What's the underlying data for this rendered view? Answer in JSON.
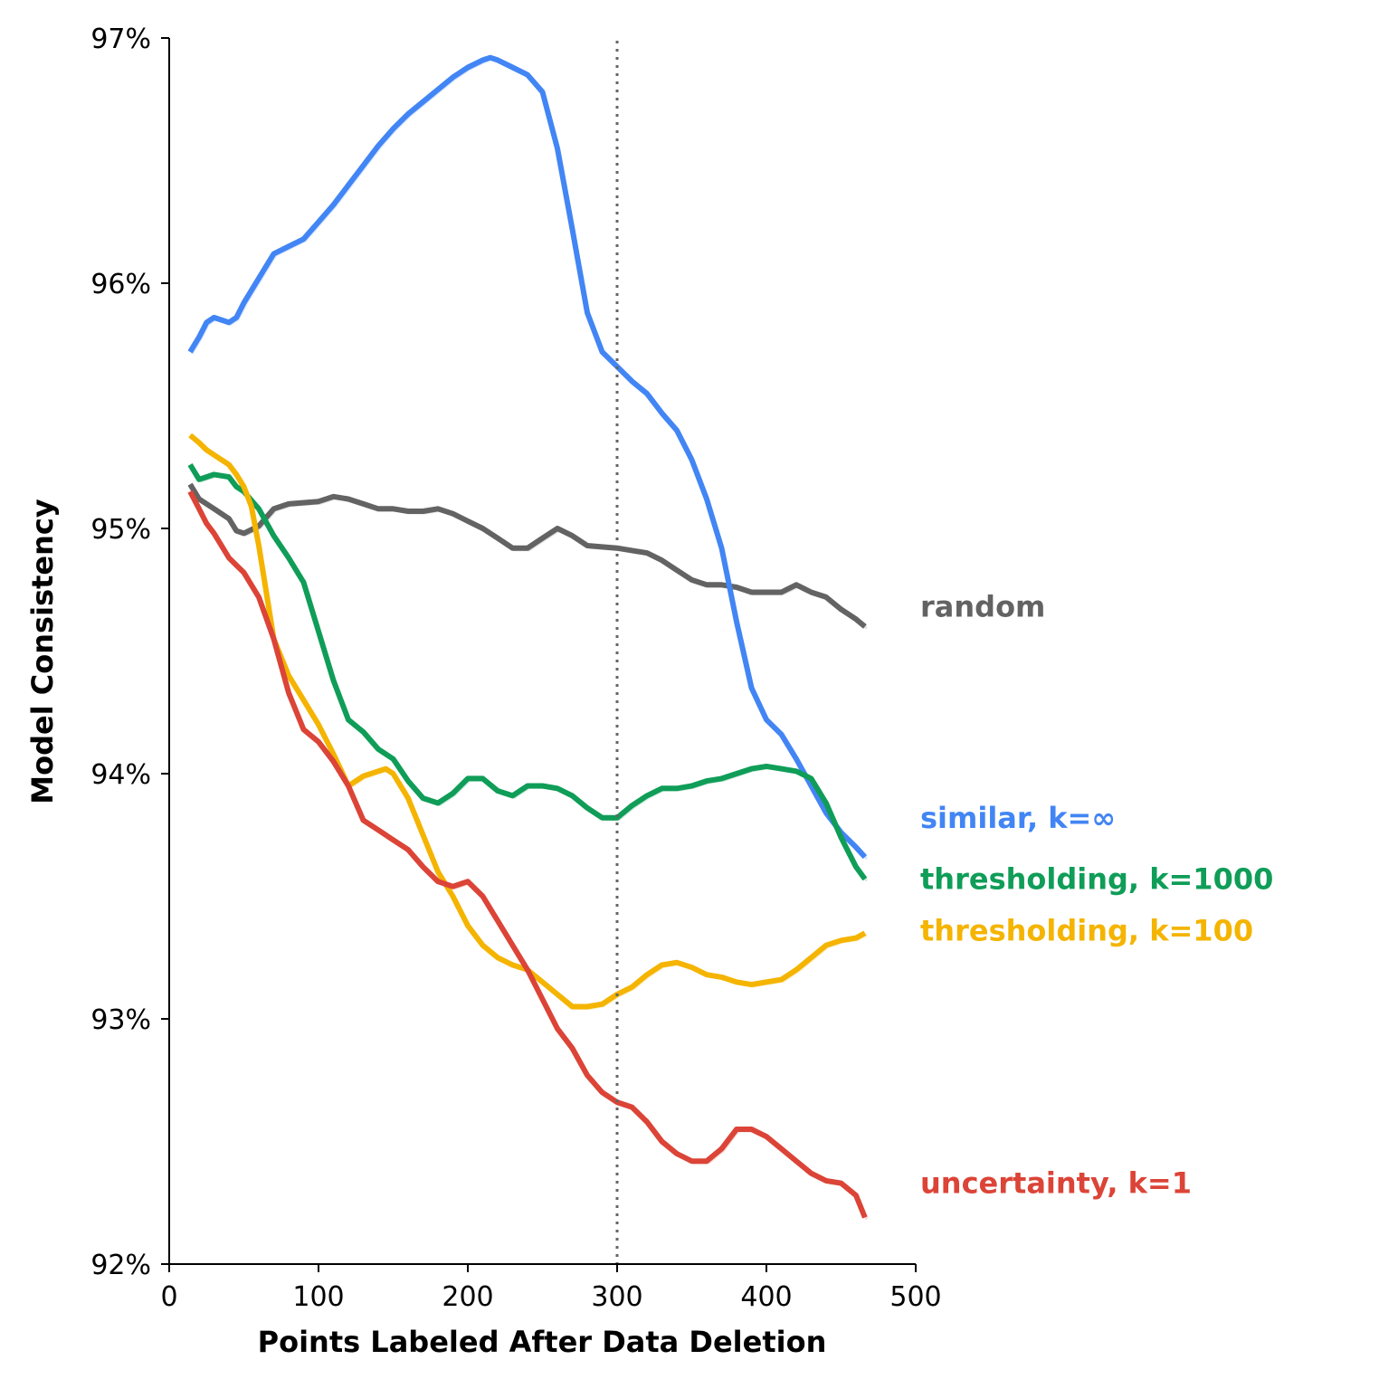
{
  "chart_data": {
    "type": "line",
    "title": "",
    "xlabel": "Points Labeled After Data Deletion",
    "ylabel": "Model Consistency",
    "xlim": [
      0,
      500
    ],
    "ylim": [
      92,
      97
    ],
    "x_ticks": [
      0,
      100,
      200,
      300,
      400,
      500
    ],
    "x_tick_labels": [
      "0",
      "100",
      "200",
      "300",
      "400",
      "500"
    ],
    "y_ticks": [
      92,
      93,
      94,
      95,
      96,
      97
    ],
    "y_tick_labels": [
      "92%",
      "93%",
      "94%",
      "95%",
      "96%",
      "97%"
    ],
    "grid": false,
    "legend": "series labels placed at the right end of each line",
    "reference_line": {
      "x": 300,
      "style": "dotted",
      "color": "#666666"
    },
    "series": [
      {
        "name": "random",
        "color": "#636363",
        "x": [
          14,
          20,
          30,
          40,
          45,
          50,
          60,
          70,
          80,
          100,
          110,
          120,
          130,
          140,
          150,
          160,
          170,
          180,
          190,
          200,
          210,
          220,
          230,
          240,
          250,
          260,
          270,
          280,
          300,
          310,
          320,
          330,
          340,
          350,
          360,
          370,
          380,
          390,
          400,
          410,
          420,
          430,
          440,
          450,
          460,
          466
        ],
        "y": [
          95.18,
          95.12,
          95.08,
          95.04,
          94.99,
          94.98,
          95.01,
          95.08,
          95.1,
          95.11,
          95.13,
          95.12,
          95.1,
          95.08,
          95.08,
          95.07,
          95.07,
          95.08,
          95.06,
          95.03,
          95.0,
          94.96,
          94.92,
          94.92,
          94.96,
          95.0,
          94.97,
          94.93,
          94.92,
          94.91,
          94.9,
          94.87,
          94.83,
          94.79,
          94.77,
          94.77,
          94.76,
          94.74,
          94.74,
          94.74,
          94.77,
          94.74,
          94.72,
          94.67,
          94.63,
          94.6
        ]
      },
      {
        "name": "similar, k=∞",
        "color": "#4285F4",
        "x": [
          14,
          20,
          25,
          30,
          40,
          45,
          50,
          60,
          70,
          80,
          90,
          100,
          110,
          120,
          130,
          140,
          150,
          160,
          170,
          180,
          190,
          200,
          210,
          215,
          220,
          230,
          240,
          250,
          260,
          270,
          280,
          290,
          300,
          310,
          320,
          330,
          340,
          350,
          360,
          370,
          380,
          390,
          400,
          410,
          420,
          430,
          440,
          450,
          460,
          466
        ],
        "y": [
          95.72,
          95.78,
          95.84,
          95.86,
          95.84,
          95.86,
          95.92,
          96.02,
          96.12,
          96.15,
          96.18,
          96.25,
          96.32,
          96.4,
          96.48,
          96.56,
          96.63,
          96.69,
          96.74,
          96.79,
          96.84,
          96.88,
          96.91,
          96.92,
          96.91,
          96.88,
          96.85,
          96.78,
          96.55,
          96.22,
          95.88,
          95.72,
          95.66,
          95.6,
          95.55,
          95.47,
          95.4,
          95.28,
          95.12,
          94.92,
          94.62,
          94.35,
          94.22,
          94.16,
          94.06,
          93.95,
          93.84,
          93.76,
          93.7,
          93.66
        ]
      },
      {
        "name": "thresholding, k=1000",
        "color": "#0F9D58",
        "x": [
          14,
          20,
          25,
          30,
          40,
          45,
          50,
          60,
          70,
          80,
          90,
          100,
          110,
          120,
          130,
          140,
          150,
          160,
          170,
          180,
          190,
          200,
          210,
          220,
          230,
          240,
          250,
          260,
          270,
          280,
          290,
          300,
          310,
          320,
          330,
          340,
          350,
          360,
          370,
          380,
          390,
          400,
          410,
          420,
          430,
          440,
          450,
          460,
          466
        ],
        "y": [
          95.26,
          95.2,
          95.21,
          95.22,
          95.21,
          95.17,
          95.15,
          95.08,
          94.97,
          94.88,
          94.78,
          94.58,
          94.38,
          94.22,
          94.17,
          94.1,
          94.06,
          93.97,
          93.9,
          93.88,
          93.92,
          93.98,
          93.98,
          93.93,
          93.91,
          93.95,
          93.95,
          93.94,
          93.91,
          93.86,
          93.82,
          93.82,
          93.87,
          93.91,
          93.94,
          93.94,
          93.95,
          93.97,
          93.98,
          94.0,
          94.02,
          94.03,
          94.02,
          94.01,
          93.98,
          93.88,
          93.74,
          93.62,
          93.57
        ]
      },
      {
        "name": "thresholding, k=100",
        "color": "#F4B400",
        "x": [
          14,
          20,
          25,
          30,
          40,
          45,
          50,
          55,
          60,
          65,
          70,
          80,
          90,
          100,
          110,
          120,
          130,
          140,
          145,
          150,
          160,
          170,
          180,
          190,
          200,
          210,
          220,
          230,
          240,
          250,
          260,
          270,
          280,
          290,
          300,
          310,
          320,
          330,
          340,
          350,
          360,
          370,
          380,
          390,
          400,
          410,
          420,
          430,
          440,
          450,
          460,
          466
        ],
        "y": [
          95.38,
          95.35,
          95.32,
          95.3,
          95.26,
          95.22,
          95.17,
          95.09,
          94.93,
          94.74,
          94.55,
          94.4,
          94.3,
          94.2,
          94.08,
          93.95,
          93.99,
          94.01,
          94.02,
          94.0,
          93.9,
          93.75,
          93.6,
          93.5,
          93.38,
          93.3,
          93.25,
          93.22,
          93.2,
          93.15,
          93.1,
          93.05,
          93.05,
          93.06,
          93.1,
          93.13,
          93.18,
          93.22,
          93.23,
          93.21,
          93.18,
          93.17,
          93.15,
          93.14,
          93.15,
          93.16,
          93.2,
          93.25,
          93.3,
          93.32,
          93.33,
          93.35
        ]
      },
      {
        "name": "uncertainty, k=1",
        "color": "#DB4437",
        "x": [
          14,
          20,
          25,
          30,
          40,
          45,
          50,
          60,
          70,
          80,
          90,
          100,
          110,
          120,
          130,
          140,
          150,
          160,
          170,
          180,
          190,
          200,
          210,
          220,
          230,
          240,
          250,
          260,
          270,
          280,
          290,
          300,
          310,
          320,
          330,
          340,
          350,
          360,
          370,
          380,
          390,
          400,
          410,
          420,
          430,
          440,
          450,
          460,
          466
        ],
        "y": [
          95.15,
          95.08,
          95.02,
          94.98,
          94.88,
          94.85,
          94.82,
          94.72,
          94.55,
          94.33,
          94.18,
          94.13,
          94.05,
          93.95,
          93.81,
          93.77,
          93.73,
          93.69,
          93.62,
          93.56,
          93.54,
          93.56,
          93.5,
          93.4,
          93.3,
          93.2,
          93.08,
          92.96,
          92.88,
          92.77,
          92.7,
          92.66,
          92.64,
          92.58,
          92.5,
          92.45,
          92.42,
          92.42,
          92.47,
          92.55,
          92.55,
          92.52,
          92.47,
          92.42,
          92.37,
          92.34,
          92.33,
          92.28,
          92.19
        ]
      }
    ]
  }
}
